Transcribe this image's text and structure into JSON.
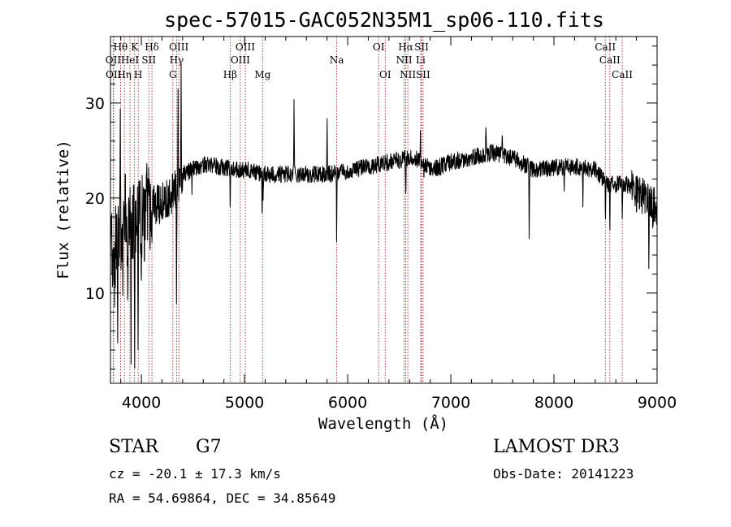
{
  "chart_data": {
    "type": "line",
    "title": "spec-57015-GAC052N35M1_sp06-110.fits",
    "xlabel": "Wavelength (Å)",
    "ylabel": "Flux (relative)",
    "xlim": [
      3700,
      9000
    ],
    "ylim": [
      0.5,
      37
    ],
    "xticks": [
      4000,
      5000,
      6000,
      7000,
      8000,
      9000
    ],
    "yticks": [
      10,
      20,
      30
    ],
    "spectral_lines": [
      {
        "label": "OII",
        "wavelength": 3727,
        "row": 2
      },
      {
        "label": "OII",
        "wavelength": 3730,
        "row": 3
      },
      {
        "label": "Hθ",
        "wavelength": 3798,
        "row": 1
      },
      {
        "label": "Hη",
        "wavelength": 3835,
        "row": 3
      },
      {
        "label": "HeI",
        "wavelength": 3889,
        "row": 2
      },
      {
        "label": "K",
        "wavelength": 3934,
        "row": 1
      },
      {
        "label": "H",
        "wavelength": 3969,
        "row": 3
      },
      {
        "label": "SII",
        "wavelength": 4072,
        "row": 2
      },
      {
        "label": "Hδ",
        "wavelength": 4102,
        "row": 1
      },
      {
        "label": "G",
        "wavelength": 4305,
        "row": 3
      },
      {
        "label": "Hγ",
        "wavelength": 4341,
        "row": 2
      },
      {
        "label": "OIII",
        "wavelength": 4363,
        "row": 1
      },
      {
        "label": "Hβ",
        "wavelength": 4861,
        "row": 3
      },
      {
        "label": "OIII",
        "wavelength": 4959,
        "row": 2
      },
      {
        "label": "OIII",
        "wavelength": 5007,
        "row": 1
      },
      {
        "label": "Mg",
        "wavelength": 5175,
        "row": 3
      },
      {
        "label": "Na",
        "wavelength": 5894,
        "row": 2
      },
      {
        "label": "OI",
        "wavelength": 6300,
        "row": 1
      },
      {
        "label": "OI",
        "wavelength": 6364,
        "row": 3
      },
      {
        "label": "NII",
        "wavelength": 6548,
        "row": 2
      },
      {
        "label": "Hα",
        "wavelength": 6563,
        "row": 1
      },
      {
        "label": "NII",
        "wavelength": 6583,
        "row": 3
      },
      {
        "label": "Li",
        "wavelength": 6708,
        "row": 2
      },
      {
        "label": "SII",
        "wavelength": 6716,
        "row": 1
      },
      {
        "label": "SII",
        "wavelength": 6731,
        "row": 3
      },
      {
        "label": "CaII",
        "wavelength": 8498,
        "row": 1
      },
      {
        "label": "CaII",
        "wavelength": 8542,
        "row": 2
      },
      {
        "label": "CaII",
        "wavelength": 8662,
        "row": 3
      }
    ],
    "continuum": [
      [
        3700,
        14
      ],
      [
        3800,
        16
      ],
      [
        3900,
        17
      ],
      [
        4000,
        18.5
      ],
      [
        4100,
        19
      ],
      [
        4200,
        19.5
      ],
      [
        4300,
        20.5
      ],
      [
        4400,
        22.5
      ],
      [
        4500,
        23
      ],
      [
        4600,
        23.5
      ],
      [
        4700,
        23.5
      ],
      [
        4800,
        23.2
      ],
      [
        4900,
        23
      ],
      [
        5000,
        23
      ],
      [
        5200,
        22.5
      ],
      [
        5400,
        22.5
      ],
      [
        5600,
        22.5
      ],
      [
        5800,
        22.5
      ],
      [
        6000,
        22.8
      ],
      [
        6200,
        23.3
      ],
      [
        6400,
        23.8
      ],
      [
        6500,
        24
      ],
      [
        6600,
        24.3
      ],
      [
        6700,
        24
      ],
      [
        6800,
        23
      ],
      [
        6900,
        23.3
      ],
      [
        7000,
        23.8
      ],
      [
        7200,
        24.3
      ],
      [
        7400,
        24.8
      ],
      [
        7600,
        24.2
      ],
      [
        7800,
        23
      ],
      [
        8000,
        23.2
      ],
      [
        8200,
        23.3
      ],
      [
        8400,
        23
      ],
      [
        8500,
        21.5
      ],
      [
        8600,
        21.5
      ],
      [
        8700,
        21.5
      ],
      [
        8800,
        20.5
      ],
      [
        8900,
        20
      ],
      [
        9000,
        19
      ]
    ],
    "features": [
      [
        3740,
        -7
      ],
      [
        3770,
        -8
      ],
      [
        3795,
        9
      ],
      [
        3820,
        -7
      ],
      [
        3845,
        6
      ],
      [
        3870,
        -9
      ],
      [
        3900,
        -10
      ],
      [
        3935,
        -14
      ],
      [
        3968,
        -15
      ],
      [
        4000,
        -10
      ],
      [
        4030,
        -4
      ],
      [
        4050,
        8
      ],
      [
        4102,
        -5
      ],
      [
        4340,
        -12
      ],
      [
        4355,
        9
      ],
      [
        4385,
        14
      ],
      [
        4490,
        -3
      ],
      [
        4861,
        -4
      ],
      [
        5170,
        -4
      ],
      [
        5180,
        -2
      ],
      [
        5480,
        8
      ],
      [
        5800,
        5
      ],
      [
        5893,
        -7
      ],
      [
        6563,
        -4
      ],
      [
        6705,
        3
      ],
      [
        6740,
        -1.5
      ],
      [
        7340,
        3
      ],
      [
        7500,
        2.5
      ],
      [
        7760,
        -7
      ],
      [
        8100,
        -2.5
      ],
      [
        8280,
        -4
      ],
      [
        8500,
        -4
      ],
      [
        8542,
        -5
      ],
      [
        8662,
        -4
      ],
      [
        8920,
        -6
      ],
      [
        8960,
        -3
      ]
    ],
    "noise_seed": 57015
  },
  "info": {
    "object_type": "STAR",
    "subclass": "G7",
    "survey": "LAMOST DR3",
    "redshift": "cz = -20.1 ± 17.3 km/s",
    "obs_date": "Obs-Date: 20141223",
    "coords": "RA =  54.69864, DEC =  34.85649"
  }
}
